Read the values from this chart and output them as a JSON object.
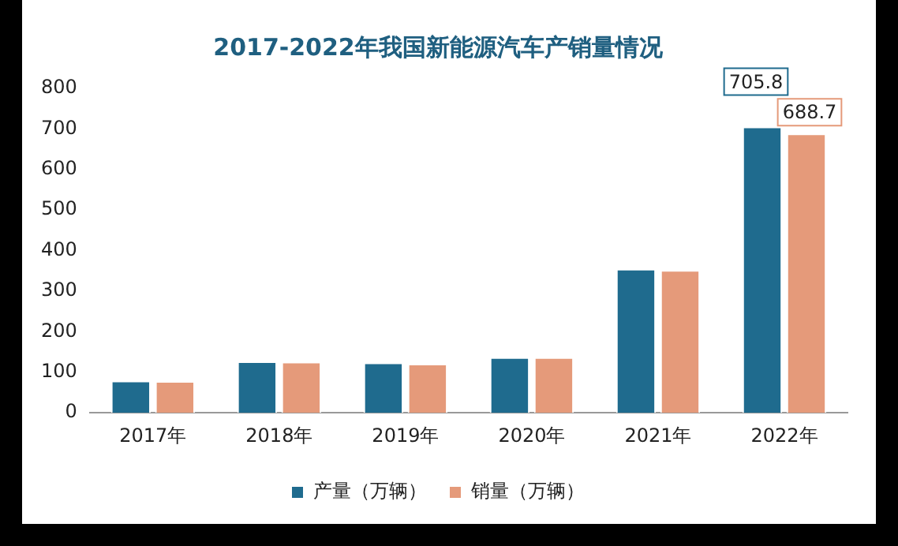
{
  "chart_data": {
    "type": "bar",
    "title": "2017-2022年我国新能源汽车产销量情况",
    "categories": [
      "2017年",
      "2018年",
      "2019年",
      "2020年",
      "2021年",
      "2022年"
    ],
    "series": [
      {
        "name": "产量（万辆）",
        "color": "#1f6b8e",
        "values": [
          79,
          127,
          124,
          137,
          355,
          705.8
        ],
        "value_labels": [
          null,
          null,
          null,
          null,
          null,
          "705.8"
        ]
      },
      {
        "name": "销量（万辆）",
        "color": "#e59a7a",
        "values": [
          78,
          126,
          121,
          137,
          352,
          688.7
        ],
        "value_labels": [
          null,
          null,
          null,
          null,
          null,
          "688.7"
        ]
      }
    ],
    "ylim": [
      0,
      800
    ],
    "yticks": [
      0,
      100,
      200,
      300,
      400,
      500,
      600,
      700,
      800
    ],
    "grid": false,
    "legend": "bottom"
  }
}
